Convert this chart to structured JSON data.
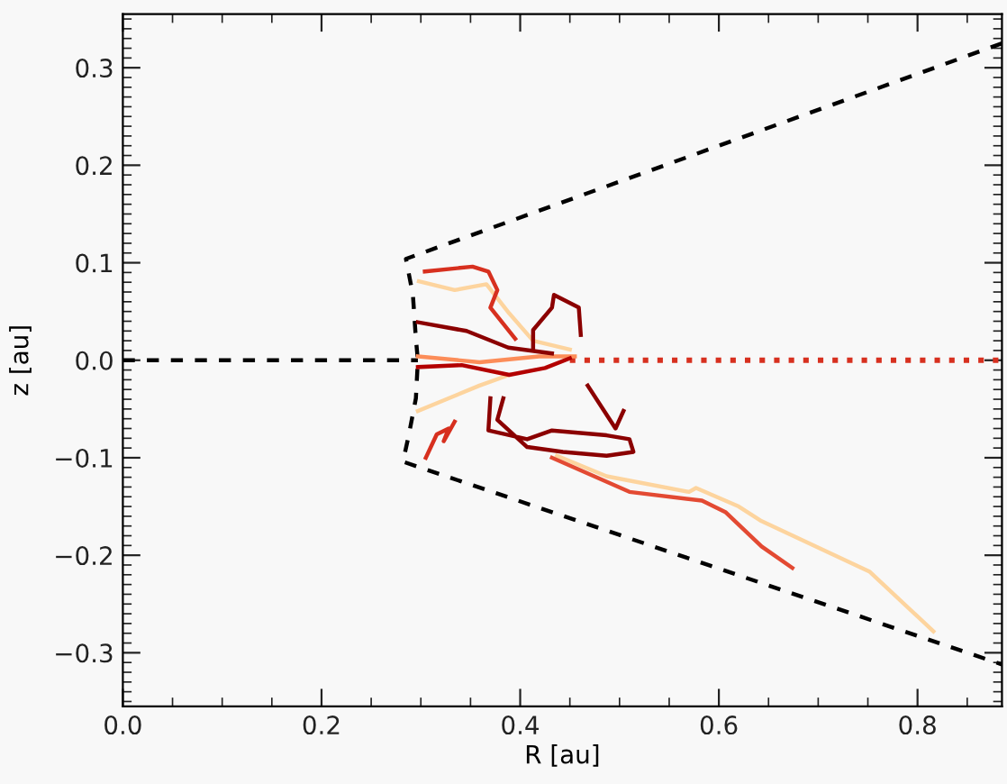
{
  "chart_data": {
    "type": "line",
    "xlabel": "R [au]",
    "ylabel": "z [au]",
    "xlim": [
      0,
      0.885
    ],
    "ylim": [
      -0.355,
      0.355
    ],
    "xticks": [
      {
        "value": 0,
        "label": "0.0"
      },
      {
        "value": 0.2,
        "label": "0.2"
      },
      {
        "value": 0.4,
        "label": "0.4"
      },
      {
        "value": 0.6,
        "label": "0.6"
      },
      {
        "value": 0.8,
        "label": "0.8"
      }
    ],
    "yticks": [
      {
        "value": -0.3,
        "label": "−0.3"
      },
      {
        "value": -0.2,
        "label": "−0.2"
      },
      {
        "value": -0.1,
        "label": "−0.1"
      },
      {
        "value": 0,
        "label": "0.0"
      },
      {
        "value": 0.1,
        "label": "0.1"
      },
      {
        "value": 0.2,
        "label": "0.2"
      },
      {
        "value": 0.3,
        "label": "0.3"
      }
    ],
    "grid": false,
    "marker": "none",
    "series": [
      {
        "color": "#000000",
        "line_style": "dashed",
        "x": [
          0,
          0.297
        ],
        "values": [
          0,
          0
        ]
      },
      {
        "color": "#000000",
        "line_style": "dashed",
        "x": [
          0.885,
          0.285,
          0.292,
          0.295,
          0.297,
          0.295,
          0.288,
          0.282,
          0.885
        ],
        "values": [
          0.325,
          0.104,
          0.067,
          0.022,
          0,
          -0.039,
          -0.076,
          -0.104,
          -0.312
        ]
      },
      {
        "color": "#d7301f",
        "line_style": "dotted",
        "x": [
          0.45,
          0.885
        ],
        "values": [
          0,
          0
        ]
      },
      {
        "color": "#fdd49e",
        "line_style": "solid",
        "x": [
          0.298,
          0.334,
          0.366,
          0.389,
          0.413,
          0.45
        ],
        "values": [
          0.081,
          0.072,
          0.078,
          0.048,
          0.02,
          0.011
        ]
      },
      {
        "color": "#fdd49e",
        "line_style": "solid",
        "x": [
          0.297,
          0.328,
          0.359,
          0.389
        ],
        "values": [
          -0.052,
          -0.039,
          -0.026,
          -0.015
        ]
      },
      {
        "color": "#fc8d59",
        "line_style": "solid",
        "x": [
          0.297,
          0.359,
          0.419,
          0.455
        ],
        "values": [
          0.004,
          -0.002,
          0.004,
          0.004
        ]
      },
      {
        "color": "#d7301f",
        "line_style": "solid",
        "x": [
          0.304,
          0.352,
          0.368,
          0.377,
          0.37,
          0.395
        ],
        "values": [
          0.091,
          0.096,
          0.091,
          0.072,
          0.054,
          0.022
        ]
      },
      {
        "color": "#d7301f",
        "line_style": "solid",
        "x": [
          0.305,
          0.316,
          0.328,
          0.323,
          0.334
        ],
        "values": [
          -0.1,
          -0.076,
          -0.07,
          -0.083,
          -0.063
        ]
      },
      {
        "color": "#b30000",
        "line_style": "solid",
        "x": [
          0.297,
          0.341,
          0.389,
          0.425,
          0.45
        ],
        "values": [
          -0.007,
          -0.005,
          -0.015,
          -0.008,
          0.002
        ]
      },
      {
        "color": "#8b0000",
        "line_style": "solid",
        "x": [
          0.297,
          0.346,
          0.388,
          0.432
        ],
        "values": [
          0.039,
          0.03,
          0.013,
          0.007
        ]
      },
      {
        "color": "#8b0000",
        "line_style": "solid",
        "x": [
          0.413,
          0.413,
          0.432,
          0.434,
          0.459,
          0.461
        ],
        "values": [
          0.013,
          0.031,
          0.054,
          0.067,
          0.054,
          0.026
        ]
      },
      {
        "color": "#8b0000",
        "line_style": "solid",
        "x": [
          0.37,
          0.368,
          0.407,
          0.432,
          0.487,
          0.51,
          0.514,
          0.487,
          0.443,
          0.407,
          0.377,
          0.383
        ],
        "values": [
          -0.039,
          -0.072,
          -0.081,
          -0.072,
          -0.077,
          -0.081,
          -0.094,
          -0.098,
          -0.094,
          -0.089,
          -0.061,
          -0.039
        ]
      },
      {
        "color": "#8b0000",
        "line_style": "solid",
        "x": [
          0.468,
          0.496,
          0.504
        ],
        "values": [
          -0.026,
          -0.07,
          -0.052
        ]
      },
      {
        "color": "#fdd49e",
        "line_style": "solid",
        "x": [
          0.437,
          0.487,
          0.57,
          0.577,
          0.62,
          0.643,
          0.752,
          0.816
        ],
        "values": [
          -0.098,
          -0.119,
          -0.135,
          -0.131,
          -0.15,
          -0.165,
          -0.217,
          -0.278
        ]
      },
      {
        "color": "#e34a33",
        "line_style": "solid",
        "x": [
          0.432,
          0.51,
          0.583,
          0.607,
          0.643,
          0.674
        ],
        "values": [
          -0.1,
          -0.135,
          -0.144,
          -0.156,
          -0.191,
          -0.213
        ]
      }
    ]
  }
}
